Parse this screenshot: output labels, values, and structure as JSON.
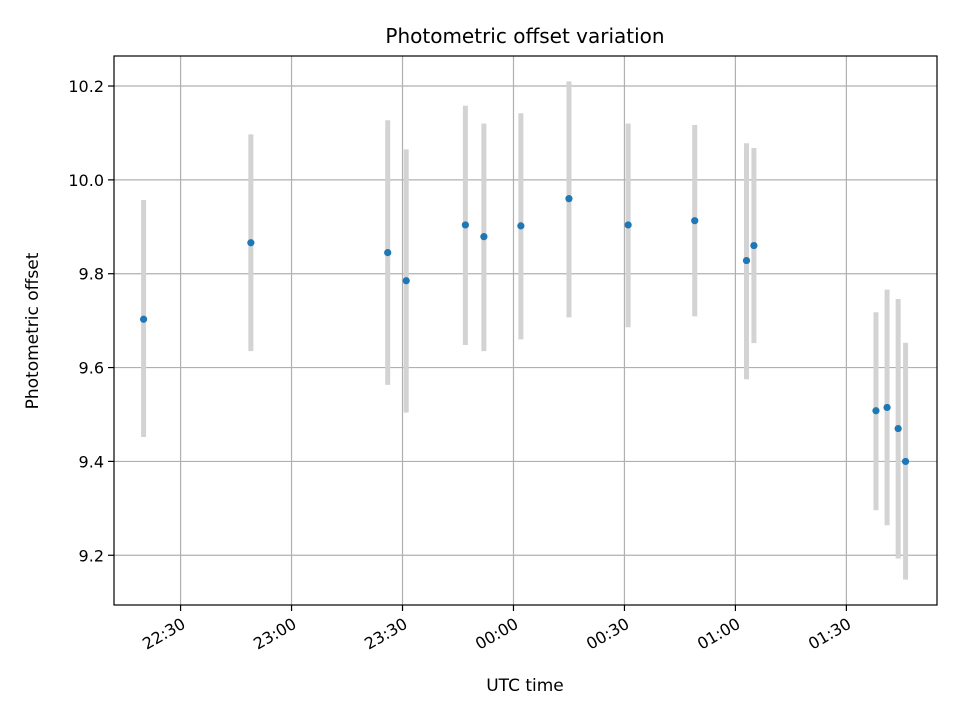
{
  "chart_data": {
    "type": "scatter",
    "title": "Photometric offset variation",
    "xlabel": "UTC time",
    "ylabel": "Photometric offset",
    "grid": true,
    "x_ticks": [
      "22:30",
      "23:00",
      "23:30",
      "00:00",
      "00:30",
      "01:00",
      "01:30"
    ],
    "x_tick_minutes": [
      -90,
      -60,
      -30,
      0,
      30,
      60,
      90
    ],
    "xlim_minutes": [
      -108,
      114.5
    ],
    "y_ticks": [
      "9.2",
      "9.4",
      "9.6",
      "9.8",
      "10.0",
      "10.2"
    ],
    "y_tick_values": [
      9.2,
      9.4,
      9.6,
      9.8,
      10.0,
      10.2
    ],
    "ylim": [
      9.094,
      10.264
    ],
    "colors": {
      "point": "#1f77b4",
      "errorbar": "#d3d3d3",
      "grid": "#b0b0b0"
    },
    "series": [
      {
        "times": [
          "22:20",
          "22:49",
          "23:26",
          "23:31",
          "23:47",
          "23:52",
          "00:02",
          "00:15",
          "00:31",
          "00:49",
          "01:03",
          "01:05",
          "01:38",
          "01:41",
          "01:44",
          "01:46"
        ],
        "x": [
          -100,
          -71,
          -34,
          -29,
          -13,
          -8,
          2,
          15,
          31,
          49,
          63,
          65,
          98,
          101,
          104,
          106
        ],
        "y": [
          9.703,
          9.866,
          9.845,
          9.785,
          9.904,
          9.879,
          9.902,
          9.96,
          9.904,
          9.913,
          9.828,
          9.86,
          9.508,
          9.515,
          9.47,
          9.4
        ],
        "yerr_low": [
          9.452,
          9.635,
          9.563,
          9.504,
          9.648,
          9.635,
          9.66,
          9.707,
          9.686,
          9.709,
          9.575,
          9.652,
          9.296,
          9.264,
          9.193,
          9.148
        ],
        "yerr_high": [
          9.957,
          10.097,
          10.127,
          10.065,
          10.158,
          10.12,
          10.142,
          10.21,
          10.12,
          10.117,
          10.078,
          10.068,
          9.718,
          9.766,
          9.746,
          9.653
        ]
      }
    ]
  }
}
